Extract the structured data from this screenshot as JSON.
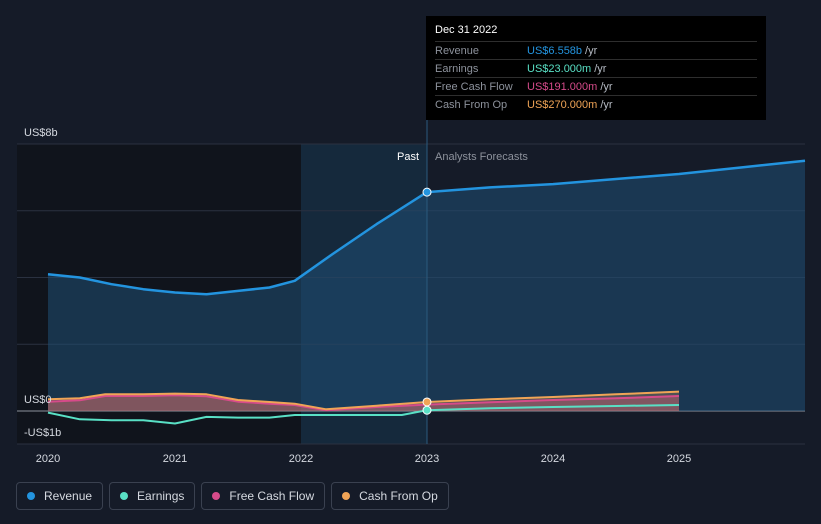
{
  "chart_data": {
    "type": "line",
    "x_ticks": [
      "2020",
      "2021",
      "2022",
      "2023",
      "2024",
      "2025"
    ],
    "y_ticks": [
      "US$8b",
      "US$0",
      "-US$1b"
    ],
    "ylim": [
      -1,
      8
    ],
    "xlim": [
      2020.0,
      2026.0
    ],
    "past_label": "Past",
    "forecast_label": "Analysts Forecasts",
    "series": [
      {
        "name": "Revenue",
        "color": "#2394df",
        "x": [
          2020.0,
          2020.25,
          2020.5,
          2020.75,
          2021.0,
          2021.25,
          2021.5,
          2021.75,
          2021.95,
          2022.25,
          2022.6,
          2023.0
        ],
        "values": [
          4.1,
          4.0,
          3.8,
          3.65,
          3.55,
          3.5,
          3.6,
          3.7,
          3.9,
          4.7,
          5.6,
          6.558
        ],
        "forecast_x": [
          2023.0,
          2023.5,
          2024.0,
          2024.5,
          2025.0,
          2025.5,
          2026.0
        ],
        "forecast_values": [
          6.558,
          6.7,
          6.8,
          6.95,
          7.1,
          7.3,
          7.5
        ]
      },
      {
        "name": "Earnings",
        "color": "#59e0c5",
        "x": [
          2020.0,
          2020.25,
          2020.5,
          2020.75,
          2021.0,
          2021.25,
          2021.5,
          2021.75,
          2021.95,
          2022.25,
          2022.6,
          2022.8,
          2023.0
        ],
        "values": [
          -0.05,
          -0.25,
          -0.28,
          -0.28,
          -0.38,
          -0.18,
          -0.2,
          -0.2,
          -0.12,
          -0.12,
          -0.12,
          -0.12,
          0.023
        ],
        "forecast_x": [
          2023.0,
          2023.5,
          2024.0,
          2024.5,
          2025.0
        ],
        "forecast_values": [
          0.023,
          0.08,
          0.12,
          0.15,
          0.18
        ]
      },
      {
        "name": "Free Cash Flow",
        "color": "#d64b8a",
        "x": [
          2020.0,
          2020.25,
          2020.45,
          2020.75,
          2021.0,
          2021.25,
          2021.5,
          2021.75,
          2021.95,
          2022.2,
          2022.6,
          2023.0
        ],
        "values": [
          0.28,
          0.32,
          0.45,
          0.45,
          0.47,
          0.44,
          0.28,
          0.22,
          0.18,
          0.02,
          0.12,
          0.191
        ],
        "forecast_x": [
          2023.0,
          2023.5,
          2024.0,
          2024.5,
          2025.0
        ],
        "forecast_values": [
          0.191,
          0.26,
          0.33,
          0.38,
          0.45
        ]
      },
      {
        "name": "Cash From Op",
        "color": "#f0a456",
        "x": [
          2020.0,
          2020.25,
          2020.45,
          2020.75,
          2021.0,
          2021.25,
          2021.5,
          2021.75,
          2021.95,
          2022.2,
          2022.6,
          2023.0
        ],
        "values": [
          0.35,
          0.38,
          0.5,
          0.5,
          0.52,
          0.5,
          0.33,
          0.27,
          0.22,
          0.05,
          0.16,
          0.27
        ],
        "forecast_x": [
          2023.0,
          2023.5,
          2024.0,
          2024.5,
          2025.0
        ],
        "forecast_values": [
          0.27,
          0.35,
          0.42,
          0.5,
          0.58
        ]
      }
    ]
  },
  "tooltip": {
    "date": "Dec 31 2022",
    "rows": [
      {
        "label": "Revenue",
        "value": "US$6.558b",
        "unit": "/yr",
        "color": "#2394df"
      },
      {
        "label": "Earnings",
        "value": "US$23.000m",
        "unit": "/yr",
        "color": "#59e0c5"
      },
      {
        "label": "Free Cash Flow",
        "value": "US$191.000m",
        "unit": "/yr",
        "color": "#d64b8a"
      },
      {
        "label": "Cash From Op",
        "value": "US$270.000m",
        "unit": "/yr",
        "color": "#f0a456"
      }
    ]
  },
  "legend": [
    {
      "label": "Revenue",
      "color": "#2394df"
    },
    {
      "label": "Earnings",
      "color": "#59e0c5"
    },
    {
      "label": "Free Cash Flow",
      "color": "#d64b8a"
    },
    {
      "label": "Cash From Op",
      "color": "#f0a456"
    }
  ]
}
